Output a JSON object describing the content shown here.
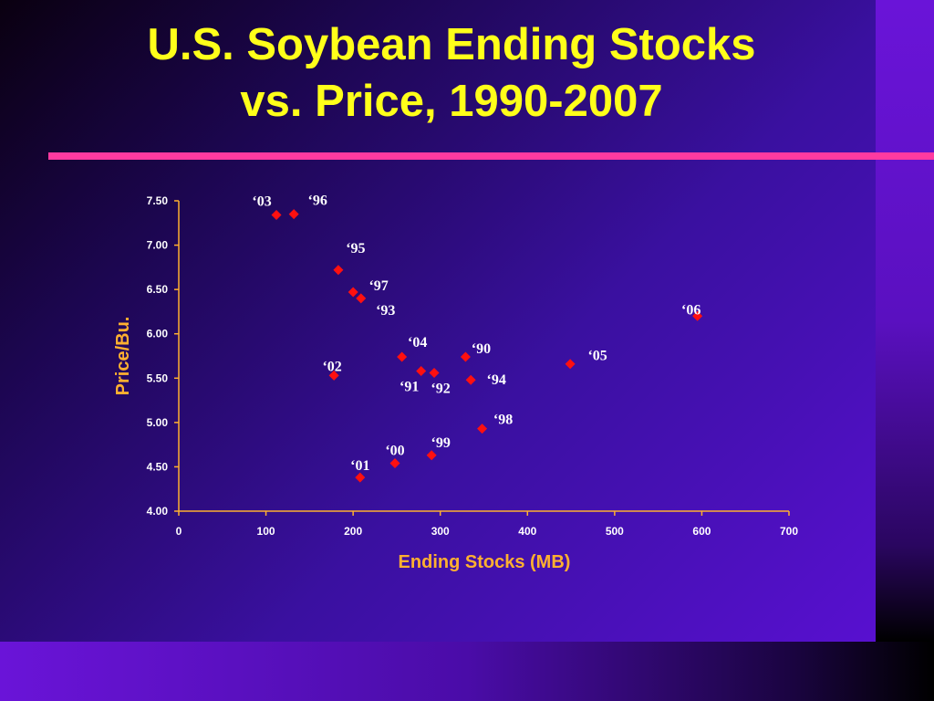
{
  "slide": {
    "title_line1": "U.S. Soybean Ending Stocks",
    "title_line2": "vs. Price, 1990-2007",
    "accent_color": "#ff3aa0",
    "title_color": "#ffff1a"
  },
  "chart_data": {
    "type": "scatter",
    "xlabel": "Ending Stocks (MB)",
    "ylabel": "Price/Bu.",
    "xlim": [
      0,
      700
    ],
    "ylim": [
      4.0,
      7.5
    ],
    "x_ticks": [
      "0",
      "100",
      "200",
      "300",
      "400",
      "500",
      "600",
      "700"
    ],
    "y_ticks": [
      "4.00",
      "4.50",
      "5.00",
      "5.50",
      "6.00",
      "6.50",
      "7.00",
      "7.50"
    ],
    "grid": false,
    "marker": "diamond",
    "marker_color": "#ff1010",
    "axis_color": "#ffb030",
    "points": [
      {
        "label": "‘03",
        "x": 112,
        "y": 7.34
      },
      {
        "label": "‘96",
        "x": 132,
        "y": 7.35
      },
      {
        "label": "‘95",
        "x": 183,
        "y": 6.72
      },
      {
        "label": "‘97",
        "x": 200,
        "y": 6.47
      },
      {
        "label": "‘93",
        "x": 209,
        "y": 6.4
      },
      {
        "label": "‘06",
        "x": 595,
        "y": 6.2
      },
      {
        "label": "‘04",
        "x": 256,
        "y": 5.74
      },
      {
        "label": "‘90",
        "x": 329,
        "y": 5.74
      },
      {
        "label": "‘05",
        "x": 449,
        "y": 5.66
      },
      {
        "label": "‘02",
        "x": 178,
        "y": 5.53
      },
      {
        "label": "‘91",
        "x": 278,
        "y": 5.58
      },
      {
        "label": "‘92",
        "x": 293,
        "y": 5.56
      },
      {
        "label": "‘94",
        "x": 335,
        "y": 5.48
      },
      {
        "label": "‘98",
        "x": 348,
        "y": 4.93
      },
      {
        "label": "‘99",
        "x": 290,
        "y": 4.63
      },
      {
        "label": "‘00",
        "x": 248,
        "y": 4.54
      },
      {
        "label": "‘01",
        "x": 208,
        "y": 4.38
      }
    ]
  }
}
